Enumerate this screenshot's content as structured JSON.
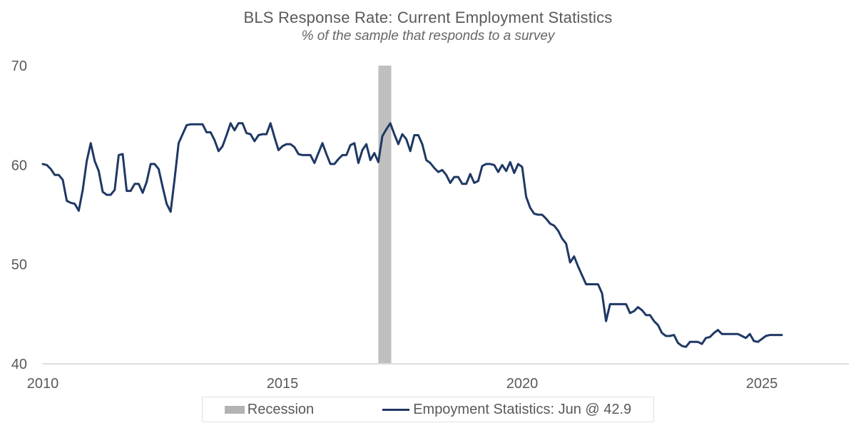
{
  "colors": {
    "line": "#1f3864",
    "recession_band": "#bfbfbf",
    "legend_swatch": "#b3b3b3",
    "text": "#595959",
    "axis_line": "#dcdcdc"
  },
  "legend": {
    "recession_label": "Recession",
    "series_label": "Empoyment Statistics: Jun @ 42.9"
  },
  "chart_data": {
    "type": "line",
    "title": "BLS Response Rate: Current Employment Statistics",
    "subtitle": "% of the sample that responds to a survey",
    "frequency": "monthly",
    "x_start": "2010-01",
    "x_end": "2025-06",
    "x_tick_years": [
      2010,
      2015,
      2020,
      2025
    ],
    "y_ticks": [
      40,
      50,
      60,
      70
    ],
    "ylim": [
      40,
      70
    ],
    "grid": "bottom-axis-only",
    "legend_position": "bottom-center",
    "recession_band": {
      "start_year": 2017.0,
      "end_year": 2017.27
    },
    "series": [
      {
        "name": "Empoyment Statistics",
        "last_point_label": "Jun @ 42.9",
        "values": [
          60.1,
          60.0,
          59.6,
          59.0,
          59.0,
          58.5,
          56.4,
          56.2,
          56.1,
          55.4,
          57.5,
          60.4,
          62.2,
          60.4,
          59.4,
          57.3,
          57.0,
          57.0,
          57.5,
          61.0,
          61.1,
          57.4,
          57.4,
          58.1,
          58.1,
          57.2,
          58.3,
          60.1,
          60.1,
          59.6,
          57.8,
          56.1,
          55.3,
          58.6,
          62.2,
          63.1,
          64.0,
          64.1,
          64.1,
          64.1,
          64.1,
          63.3,
          63.3,
          62.5,
          61.4,
          61.9,
          63.0,
          64.2,
          63.5,
          64.2,
          64.2,
          63.2,
          63.1,
          62.4,
          63.0,
          63.1,
          63.1,
          64.2,
          62.8,
          61.5,
          61.9,
          62.1,
          62.1,
          61.8,
          61.1,
          61.0,
          61.0,
          61.0,
          60.2,
          61.2,
          62.2,
          61.1,
          60.1,
          60.1,
          60.6,
          61.0,
          61.0,
          62.0,
          62.2,
          60.2,
          61.5,
          62.1,
          60.5,
          61.2,
          60.3,
          62.9,
          63.6,
          64.2,
          63.1,
          62.1,
          63.1,
          62.6,
          61.4,
          63.0,
          63.0,
          62.1,
          60.5,
          60.2,
          59.7,
          59.3,
          59.5,
          59.0,
          58.2,
          58.8,
          58.8,
          58.1,
          58.1,
          59.1,
          58.2,
          58.4,
          59.9,
          60.1,
          60.1,
          60.0,
          59.3,
          60.0,
          59.4,
          60.3,
          59.2,
          60.1,
          59.8,
          56.8,
          55.7,
          55.1,
          55.0,
          55.0,
          54.6,
          54.1,
          53.9,
          53.4,
          52.6,
          52.1,
          50.2,
          50.8,
          49.8,
          48.9,
          48.0,
          48.0,
          48.0,
          48.0,
          47.1,
          44.3,
          46.0,
          46.0,
          46.0,
          46.0,
          46.0,
          45.1,
          45.3,
          45.7,
          45.4,
          44.9,
          44.9,
          44.3,
          43.9,
          43.1,
          42.8,
          42.8,
          42.9,
          42.1,
          41.8,
          41.7,
          42.2,
          42.2,
          42.2,
          42.0,
          42.6,
          42.7,
          43.1,
          43.4,
          43.0,
          43.0,
          43.0,
          43.0,
          43.0,
          42.8,
          42.6,
          43.0,
          42.3,
          42.2,
          42.5,
          42.8,
          42.9,
          42.9,
          42.9,
          42.9
        ]
      }
    ]
  }
}
